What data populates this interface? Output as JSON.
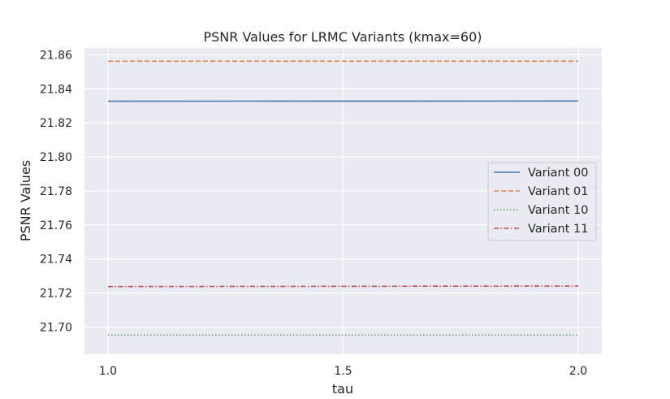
{
  "chart_data": {
    "type": "line",
    "title": "PSNR Values for LRMC Variants (kmax=60)",
    "xlabel": "tau",
    "ylabel": "PSNR Values",
    "x": [
      1.0,
      2.0
    ],
    "xlim": [
      0.95,
      2.05
    ],
    "ylim": [
      21.684,
      21.864
    ],
    "xticks": [
      1.0,
      1.5,
      2.0
    ],
    "xtick_labels": [
      "1.0",
      "1.5",
      "2.0"
    ],
    "yticks": [
      21.7,
      21.72,
      21.74,
      21.76,
      21.78,
      21.8,
      21.82,
      21.84,
      21.86
    ],
    "ytick_labels": [
      "21.70",
      "21.72",
      "21.74",
      "21.76",
      "21.78",
      "21.80",
      "21.82",
      "21.84",
      "21.86"
    ],
    "grid": true,
    "legend_position": "center-right",
    "series": [
      {
        "name": "Variant 00",
        "values": [
          21.8327,
          21.8328
        ],
        "color": "#4c72b0",
        "dash": "solid"
      },
      {
        "name": "Variant 01",
        "values": [
          21.8562,
          21.8562
        ],
        "color": "#dd8452",
        "dash": "dashed"
      },
      {
        "name": "Variant 10",
        "values": [
          21.6953,
          21.6953
        ],
        "color": "#55a868",
        "dash": "dotted"
      },
      {
        "name": "Variant 11",
        "values": [
          21.7238,
          21.7241
        ],
        "color": "#c44e52",
        "dash": "dashdot"
      }
    ]
  }
}
